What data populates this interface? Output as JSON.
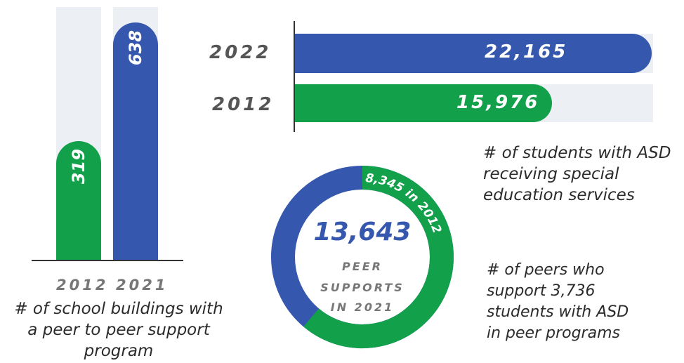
{
  "chart_data": [
    {
      "type": "bar",
      "orientation": "vertical",
      "categories": [
        "2012",
        "2021"
      ],
      "values": [
        319,
        638
      ],
      "value_labels": [
        "319",
        "638"
      ],
      "caption": "# of school buildings with a peer to peer support program",
      "colors": [
        "#13a04b",
        "#3557ad"
      ],
      "ylim": [
        0,
        638
      ]
    },
    {
      "type": "bar",
      "orientation": "horizontal",
      "categories": [
        "2022",
        "2012"
      ],
      "values": [
        22165,
        15976
      ],
      "value_labels": [
        "22,165",
        "15,976"
      ],
      "caption": "# of students with ASD receiving special education services",
      "colors": [
        "#3557ad",
        "#13a04b"
      ],
      "xlim": [
        0,
        22165
      ]
    },
    {
      "type": "pie",
      "variant": "donut",
      "segments": [
        {
          "label": "8,345 in 2012",
          "value": 8345,
          "color": "#13a04b"
        },
        {
          "label": "",
          "value": 5298,
          "color": "#3557ad"
        }
      ],
      "center_value": "13,643",
      "center_lines": [
        "PEER",
        "SUPPORTS",
        "IN 2021"
      ],
      "caption_lines": [
        "# of peers who",
        "students with ASD",
        "in peer programs"
      ],
      "caption_support_prefix": "support",
      "caption_support_number": "3,736"
    }
  ]
}
